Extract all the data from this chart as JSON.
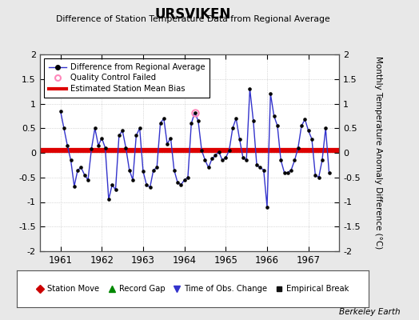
{
  "title": "URSVIKEN",
  "subtitle": "Difference of Station Temperature Data from Regional Average",
  "ylabel": "Monthly Temperature Anomaly Difference (°C)",
  "credit": "Berkeley Earth",
  "bias": 0.05,
  "ylim": [
    -2,
    2
  ],
  "xlim": [
    1960.5,
    1967.75
  ],
  "x_ticks": [
    1961,
    1962,
    1963,
    1964,
    1965,
    1966,
    1967
  ],
  "y_ticks": [
    -2,
    -1.5,
    -1,
    -0.5,
    0,
    0.5,
    1,
    1.5,
    2
  ],
  "bg_color": "#e8e8e8",
  "plot_bg_color": "#ffffff",
  "line_color": "#3333cc",
  "bias_color": "#dd0000",
  "qc_x": [
    1964.25
  ],
  "qc_y": [
    0.82
  ],
  "data_x": [
    1961.0,
    1961.083,
    1961.167,
    1961.25,
    1961.333,
    1961.417,
    1961.5,
    1961.583,
    1961.667,
    1961.75,
    1961.833,
    1961.917,
    1962.0,
    1962.083,
    1962.167,
    1962.25,
    1962.333,
    1962.417,
    1962.5,
    1962.583,
    1962.667,
    1962.75,
    1962.833,
    1962.917,
    1963.0,
    1963.083,
    1963.167,
    1963.25,
    1963.333,
    1963.417,
    1963.5,
    1963.583,
    1963.667,
    1963.75,
    1963.833,
    1963.917,
    1964.0,
    1964.083,
    1964.167,
    1964.25,
    1964.333,
    1964.417,
    1964.5,
    1964.583,
    1964.667,
    1964.75,
    1964.833,
    1964.917,
    1965.0,
    1965.083,
    1965.167,
    1965.25,
    1965.333,
    1965.417,
    1965.5,
    1965.583,
    1965.667,
    1965.75,
    1965.833,
    1965.917,
    1966.0,
    1966.083,
    1966.167,
    1966.25,
    1966.333,
    1966.417,
    1966.5,
    1966.583,
    1966.667,
    1966.75,
    1966.833,
    1966.917,
    1967.0,
    1967.083,
    1967.167,
    1967.25,
    1967.333,
    1967.417,
    1967.5
  ],
  "data_y": [
    0.85,
    0.5,
    0.15,
    -0.15,
    -0.68,
    -0.35,
    -0.3,
    -0.45,
    -0.55,
    0.08,
    0.5,
    0.15,
    0.3,
    0.1,
    -0.95,
    -0.65,
    -0.75,
    0.35,
    0.45,
    0.1,
    -0.35,
    -0.55,
    0.35,
    0.5,
    -0.38,
    -0.65,
    -0.7,
    -0.35,
    -0.3,
    0.6,
    0.7,
    0.18,
    0.3,
    -0.35,
    -0.6,
    -0.65,
    -0.55,
    -0.5,
    0.6,
    0.82,
    0.65,
    0.05,
    -0.15,
    -0.3,
    -0.12,
    -0.05,
    0.02,
    -0.15,
    -0.1,
    0.05,
    0.5,
    0.7,
    0.28,
    -0.1,
    -0.15,
    1.3,
    0.65,
    -0.25,
    -0.3,
    -0.35,
    -1.1,
    1.2,
    0.75,
    0.55,
    -0.15,
    -0.4,
    -0.4,
    -0.35,
    -0.15,
    0.1,
    0.55,
    0.68,
    0.45,
    0.28,
    -0.45,
    -0.5,
    -0.15,
    0.5,
    -0.4
  ]
}
